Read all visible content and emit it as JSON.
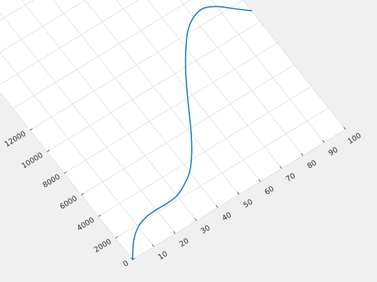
{
  "figure": {
    "background_color": "#f0f0f0",
    "axes_color": "#ffffff",
    "grid_color": "#dcdcdc",
    "line_color": "#0072bd",
    "grid": true,
    "view": "rotated axes"
  },
  "chart_data": {
    "type": "line",
    "title": "",
    "xlabel": "",
    "ylabel": "",
    "xlim": [
      0,
      100
    ],
    "ylim": [
      0,
      12000
    ],
    "xticks": [
      0,
      10,
      20,
      30,
      40,
      50,
      60,
      70,
      80,
      90,
      100
    ],
    "xtick_labels": [
      "10",
      "20",
      "30",
      "40",
      "50",
      "60",
      "70",
      "80",
      "90",
      "100"
    ],
    "yticks": [
      0,
      2000,
      4000,
      6000,
      8000,
      10000,
      12000
    ],
    "ytick_labels": [
      "0",
      "2000",
      "4000",
      "6000",
      "8000",
      "10000",
      "12000"
    ],
    "series": [
      {
        "x": [
          0,
          5,
          10,
          15,
          20,
          25,
          30,
          35,
          40,
          45,
          50,
          55,
          60,
          65,
          70,
          75,
          80,
          85,
          90,
          95,
          100
        ],
        "y": [
          0,
          1130,
          1830,
          2140,
          2210,
          2200,
          2300,
          2700,
          3300,
          4300,
          5600,
          7100,
          8600,
          10000,
          11200,
          12200,
          12800,
          13000,
          12600,
          11800,
          11000
        ]
      }
    ]
  }
}
